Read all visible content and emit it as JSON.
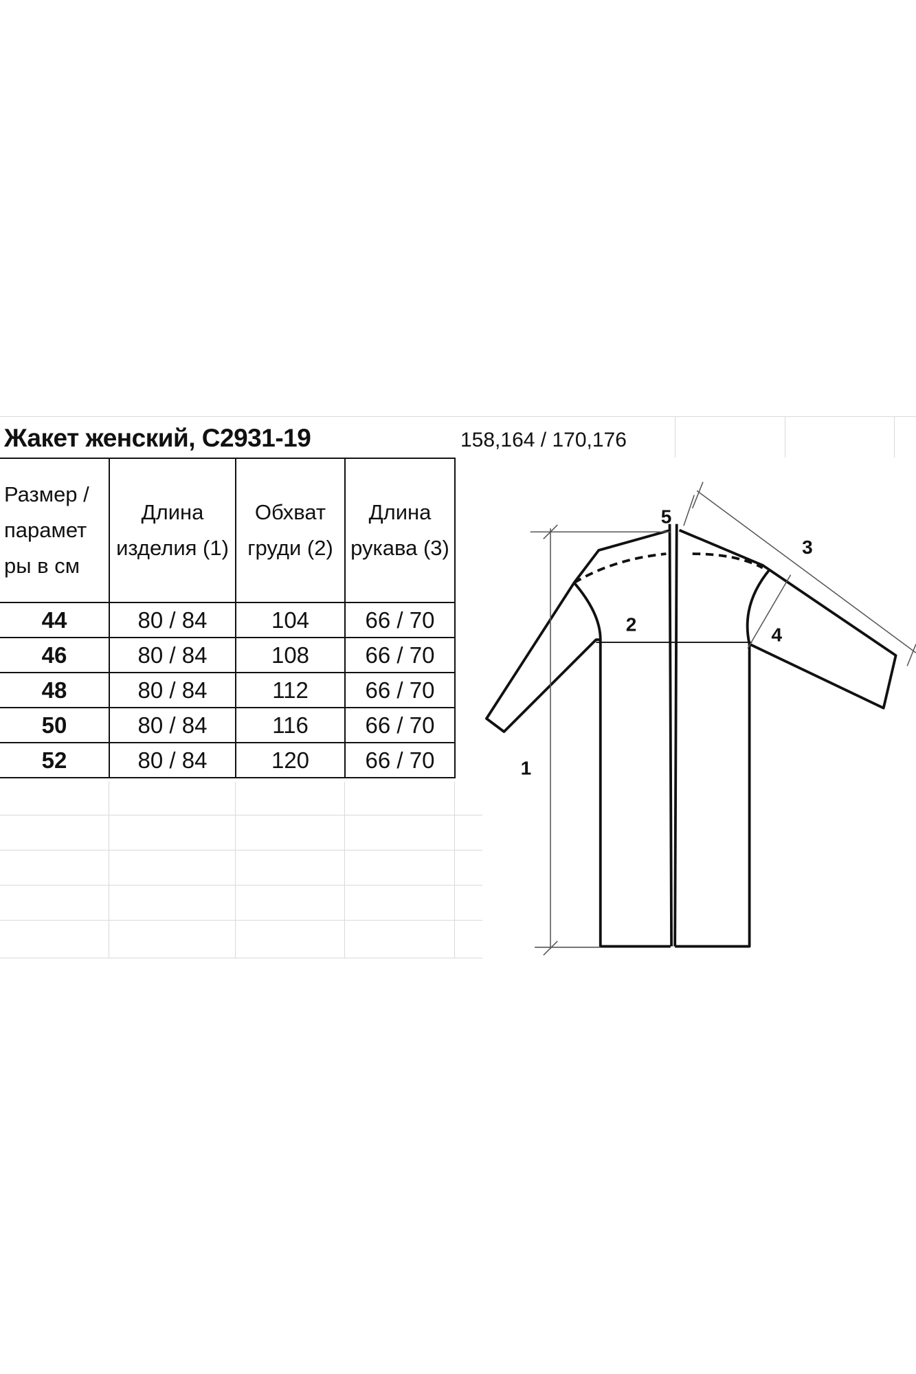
{
  "title": "Жакет женский, С2931-19",
  "heights": "158,164 / 170,176",
  "table": {
    "headers": [
      "Размер / парамет ры в см",
      "Длина изделия (1)",
      "Обхват груди (2)",
      "Длина рукава (3)"
    ],
    "rows": [
      [
        "44",
        "80 / 84",
        "104",
        "66 / 70"
      ],
      [
        "46",
        "80 / 84",
        "108",
        "66 / 70"
      ],
      [
        "48",
        "80 / 84",
        "112",
        "66 / 70"
      ],
      [
        "50",
        "80 / 84",
        "116",
        "66 / 70"
      ],
      [
        "52",
        "80 / 84",
        "120",
        "66 / 70"
      ]
    ]
  },
  "diagram": {
    "labels": [
      "1",
      "2",
      "3",
      "4",
      "5"
    ]
  }
}
